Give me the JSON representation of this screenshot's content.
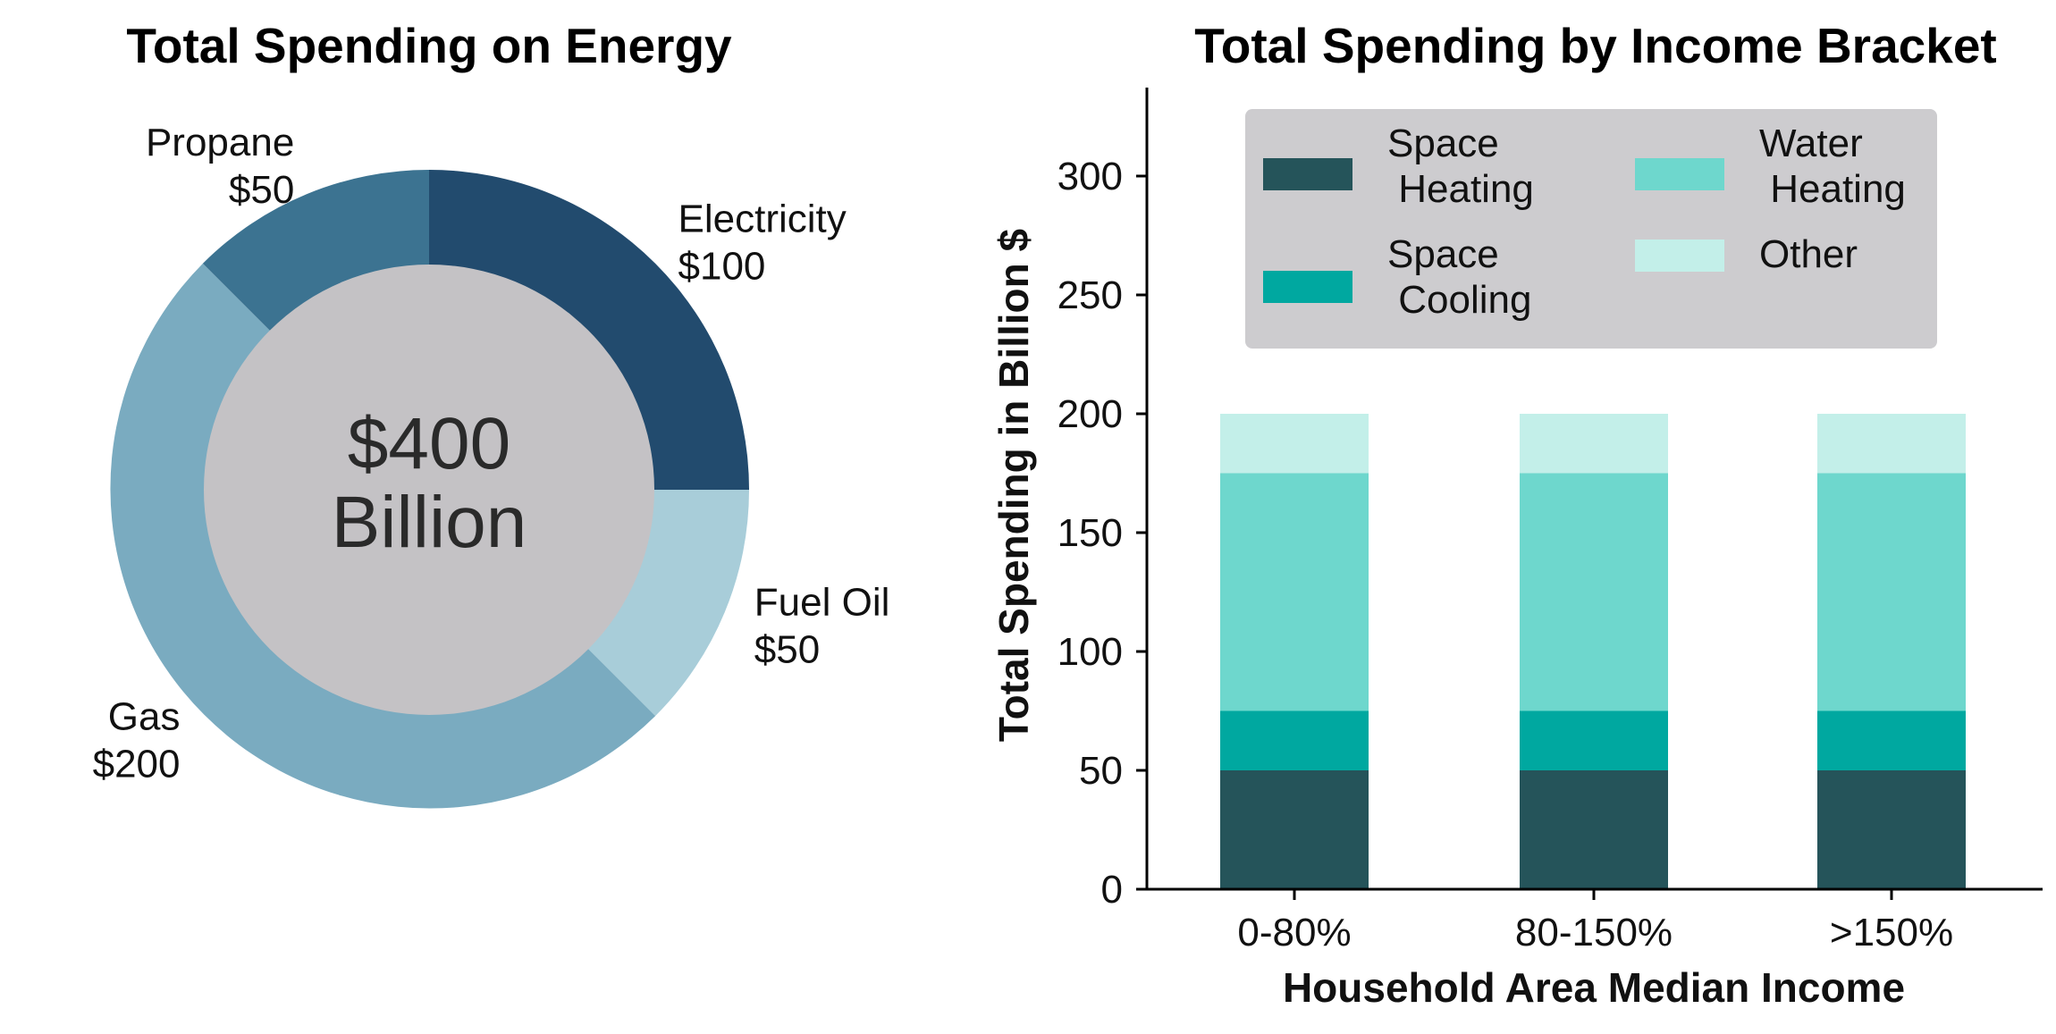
{
  "chart_data": [
    {
      "type": "pie",
      "title": "Total Spending on Energy",
      "center_label": [
        "$400",
        "Billion"
      ],
      "slices": [
        {
          "name": "Electricity",
          "value": 100,
          "label": [
            "Electricity",
            "$100"
          ],
          "color": "#224b6e"
        },
        {
          "name": "Fuel Oil",
          "value": 50,
          "label": [
            "Fuel Oil",
            "$50"
          ],
          "color": "#a8cdd9"
        },
        {
          "name": "Gas",
          "value": 200,
          "label": [
            "Gas",
            "$200"
          ],
          "color": "#7aabc0"
        },
        {
          "name": "Propane",
          "value": 50,
          "label": [
            "Propane",
            "$50"
          ],
          "color": "#3c7391"
        }
      ],
      "center_color": "#c4c2c5"
    },
    {
      "type": "bar",
      "stacked": true,
      "title": "Total Spending by Income Bracket",
      "xlabel": "Household Area Median Income",
      "ylabel": "Total Spending in Billion $",
      "categories": [
        "0-80%",
        "80-150%",
        ">150%"
      ],
      "ylim": [
        0,
        335
      ],
      "yticks": [
        0,
        50,
        100,
        150,
        200,
        250,
        300
      ],
      "series": [
        {
          "name": [
            "Space",
            " Heating"
          ],
          "values": [
            50,
            50,
            50
          ],
          "color": "#25545a"
        },
        {
          "name": [
            "Space",
            " Cooling"
          ],
          "values": [
            25,
            25,
            25
          ],
          "color": "#00a8a0"
        },
        {
          "name": [
            "Water",
            " Heating"
          ],
          "values": [
            100,
            100,
            100
          ],
          "color": "#6ed7cd"
        },
        {
          "name": [
            "Other"
          ],
          "values": [
            25,
            25,
            25
          ],
          "color": "#c3efe9"
        }
      ],
      "legend_placement": "top",
      "legend_color": "#cdcccf"
    }
  ]
}
